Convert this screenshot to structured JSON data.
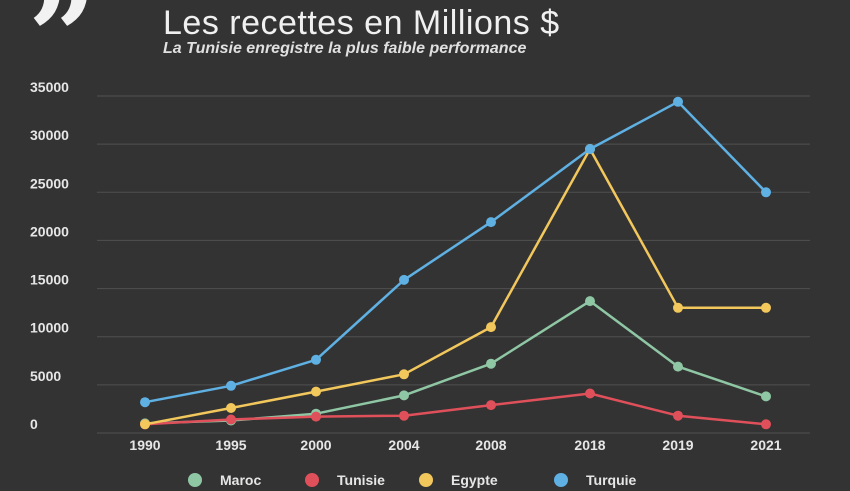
{
  "header": {
    "title": "Les recettes en Millions $",
    "subtitle": "La Tunisie enregistre la plus faible performance",
    "quote_icon": "quote-icon"
  },
  "chart_data": {
    "type": "line",
    "title": "Les recettes en Millions $",
    "subtitle": "La Tunisie enregistre la plus faible performance",
    "categories": [
      "1990",
      "1995",
      "2000",
      "2004",
      "2008",
      "2018",
      "2019",
      "2021"
    ],
    "ylim": [
      0,
      35000
    ],
    "yticks": [
      0,
      5000,
      10000,
      15000,
      20000,
      25000,
      30000,
      35000
    ],
    "grid": true,
    "legend_position": "bottom",
    "series": [
      {
        "name": "Maroc",
        "color": "#8fc7a5",
        "values": [
          1000,
          1300,
          2000,
          3900,
          7200,
          13700,
          6900,
          3800
        ]
      },
      {
        "name": "Tunisie",
        "color": "#e0505a",
        "values": [
          900,
          1400,
          1700,
          1800,
          2900,
          4100,
          1800,
          900
        ]
      },
      {
        "name": "Egypte",
        "color": "#f2c75c",
        "values": [
          900,
          2600,
          4300,
          6100,
          11000,
          29500,
          13000,
          13000
        ]
      },
      {
        "name": "Turquie",
        "color": "#5fb0e3",
        "values": [
          3200,
          4900,
          7600,
          15900,
          21900,
          29500,
          34400,
          25000
        ]
      }
    ]
  }
}
